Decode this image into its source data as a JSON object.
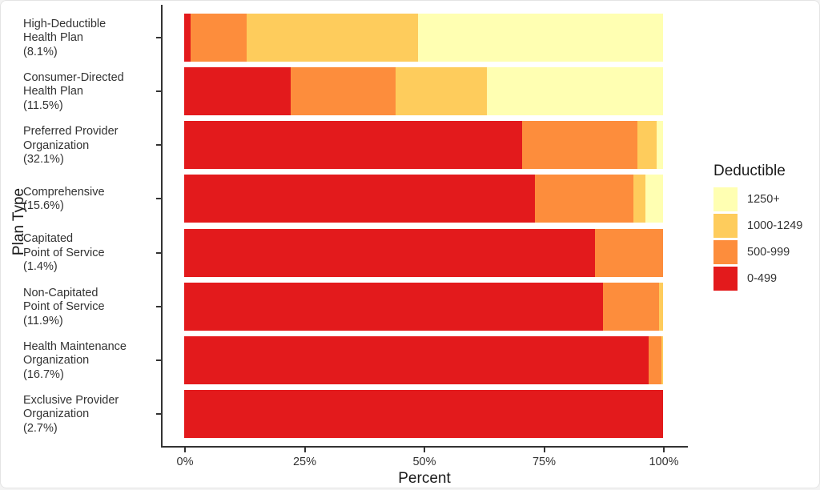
{
  "chart_data": {
    "type": "bar",
    "orientation": "horizontal",
    "stacked": "percent",
    "title": "",
    "xlabel": "Percent",
    "ylabel": "Plan Type",
    "xlim": [
      0,
      100
    ],
    "x_ticks": [
      "0%",
      "25%",
      "50%",
      "75%",
      "100%"
    ],
    "grid": false,
    "legend_position": "right",
    "legend_title": "Deductible",
    "categories": [
      "High-Deductible\nHealth Plan\n(8.1%)",
      "Consumer-Directed\nHealth Plan\n(11.5%)",
      "Preferred Provider\nOrganization\n(32.1%)",
      "Comprehensive\n(15.6%)",
      "Capitated\nPoint of Service\n(1.4%)",
      "Non-Capitated\nPoint of Service\n(11.9%)",
      "Health Maintenance\nOrganization\n(16.7%)",
      "Exclusive Provider\nOrganization\n(2.7%)"
    ],
    "series": [
      {
        "name": "0-499",
        "color": "#E31A1C",
        "values": [
          1.4,
          22.3,
          70.5,
          73.2,
          85.8,
          87.4,
          97.0,
          100.0
        ]
      },
      {
        "name": "500-999",
        "color": "#FD8D3C",
        "values": [
          11.6,
          21.8,
          24.2,
          20.6,
          14.2,
          11.8,
          2.7,
          0.0
        ]
      },
      {
        "name": "1000-1249",
        "color": "#FECC5C",
        "values": [
          35.8,
          19.1,
          4.0,
          2.5,
          0.0,
          0.8,
          0.3,
          0.0
        ]
      },
      {
        "name": "1250+",
        "color": "#FFFFB2",
        "values": [
          51.2,
          36.8,
          1.3,
          3.7,
          0.0,
          0.0,
          0.0,
          0.0
        ]
      }
    ]
  },
  "legend": {
    "title": "Deductible",
    "items": [
      {
        "label": "1250+",
        "color": "#FFFFB2"
      },
      {
        "label": "1000-1249",
        "color": "#FECC5C"
      },
      {
        "label": "500-999",
        "color": "#FD8D3C"
      },
      {
        "label": "0-499",
        "color": "#E31A1C"
      }
    ]
  },
  "axes": {
    "xlabel": "Percent",
    "ylabel": "Plan Type",
    "x_ticks": [
      "0%",
      "25%",
      "50%",
      "75%",
      "100%"
    ]
  }
}
